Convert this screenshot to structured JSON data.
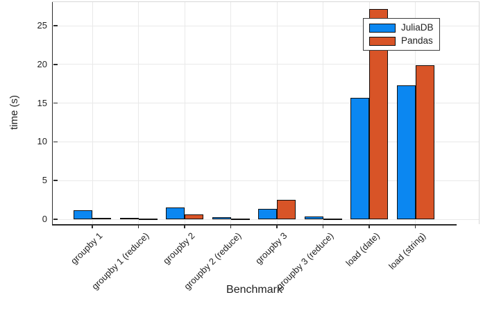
{
  "figure": {
    "background": "#ffffff",
    "frame_color_dark": "#2b2b2b",
    "frame_color_light": "#d7d7d7",
    "grid_color": "#e9e9e9",
    "bar_outline_color": "#101010",
    "text_color": "#1f1f1f"
  },
  "chart_data": {
    "type": "bar",
    "title": "",
    "xlabel": "Benchmark",
    "ylabel": "time (s)",
    "categories": [
      "groupby 1",
      "groupby 1 (reduce)",
      "groupby 2",
      "groupby 2 (reduce)",
      "groupby 3",
      "groupby 3 (reduce)",
      "load (date)",
      "load (string)"
    ],
    "series": [
      {
        "name": "JuliaDB",
        "color": "#0b87f1",
        "values": [
          1.2,
          0.17,
          1.55,
          0.28,
          1.3,
          0.33,
          15.7,
          17.3
        ]
      },
      {
        "name": "Pandas",
        "color": "#d85427",
        "values": [
          0.18,
          0.05,
          0.65,
          0.06,
          2.5,
          0.06,
          27.2,
          19.9
        ]
      }
    ],
    "yticks": [
      0,
      5,
      10,
      15,
      20,
      25
    ],
    "ylim": [
      -0.65,
      28.1
    ],
    "grid": true,
    "legend_position": "top-right"
  }
}
